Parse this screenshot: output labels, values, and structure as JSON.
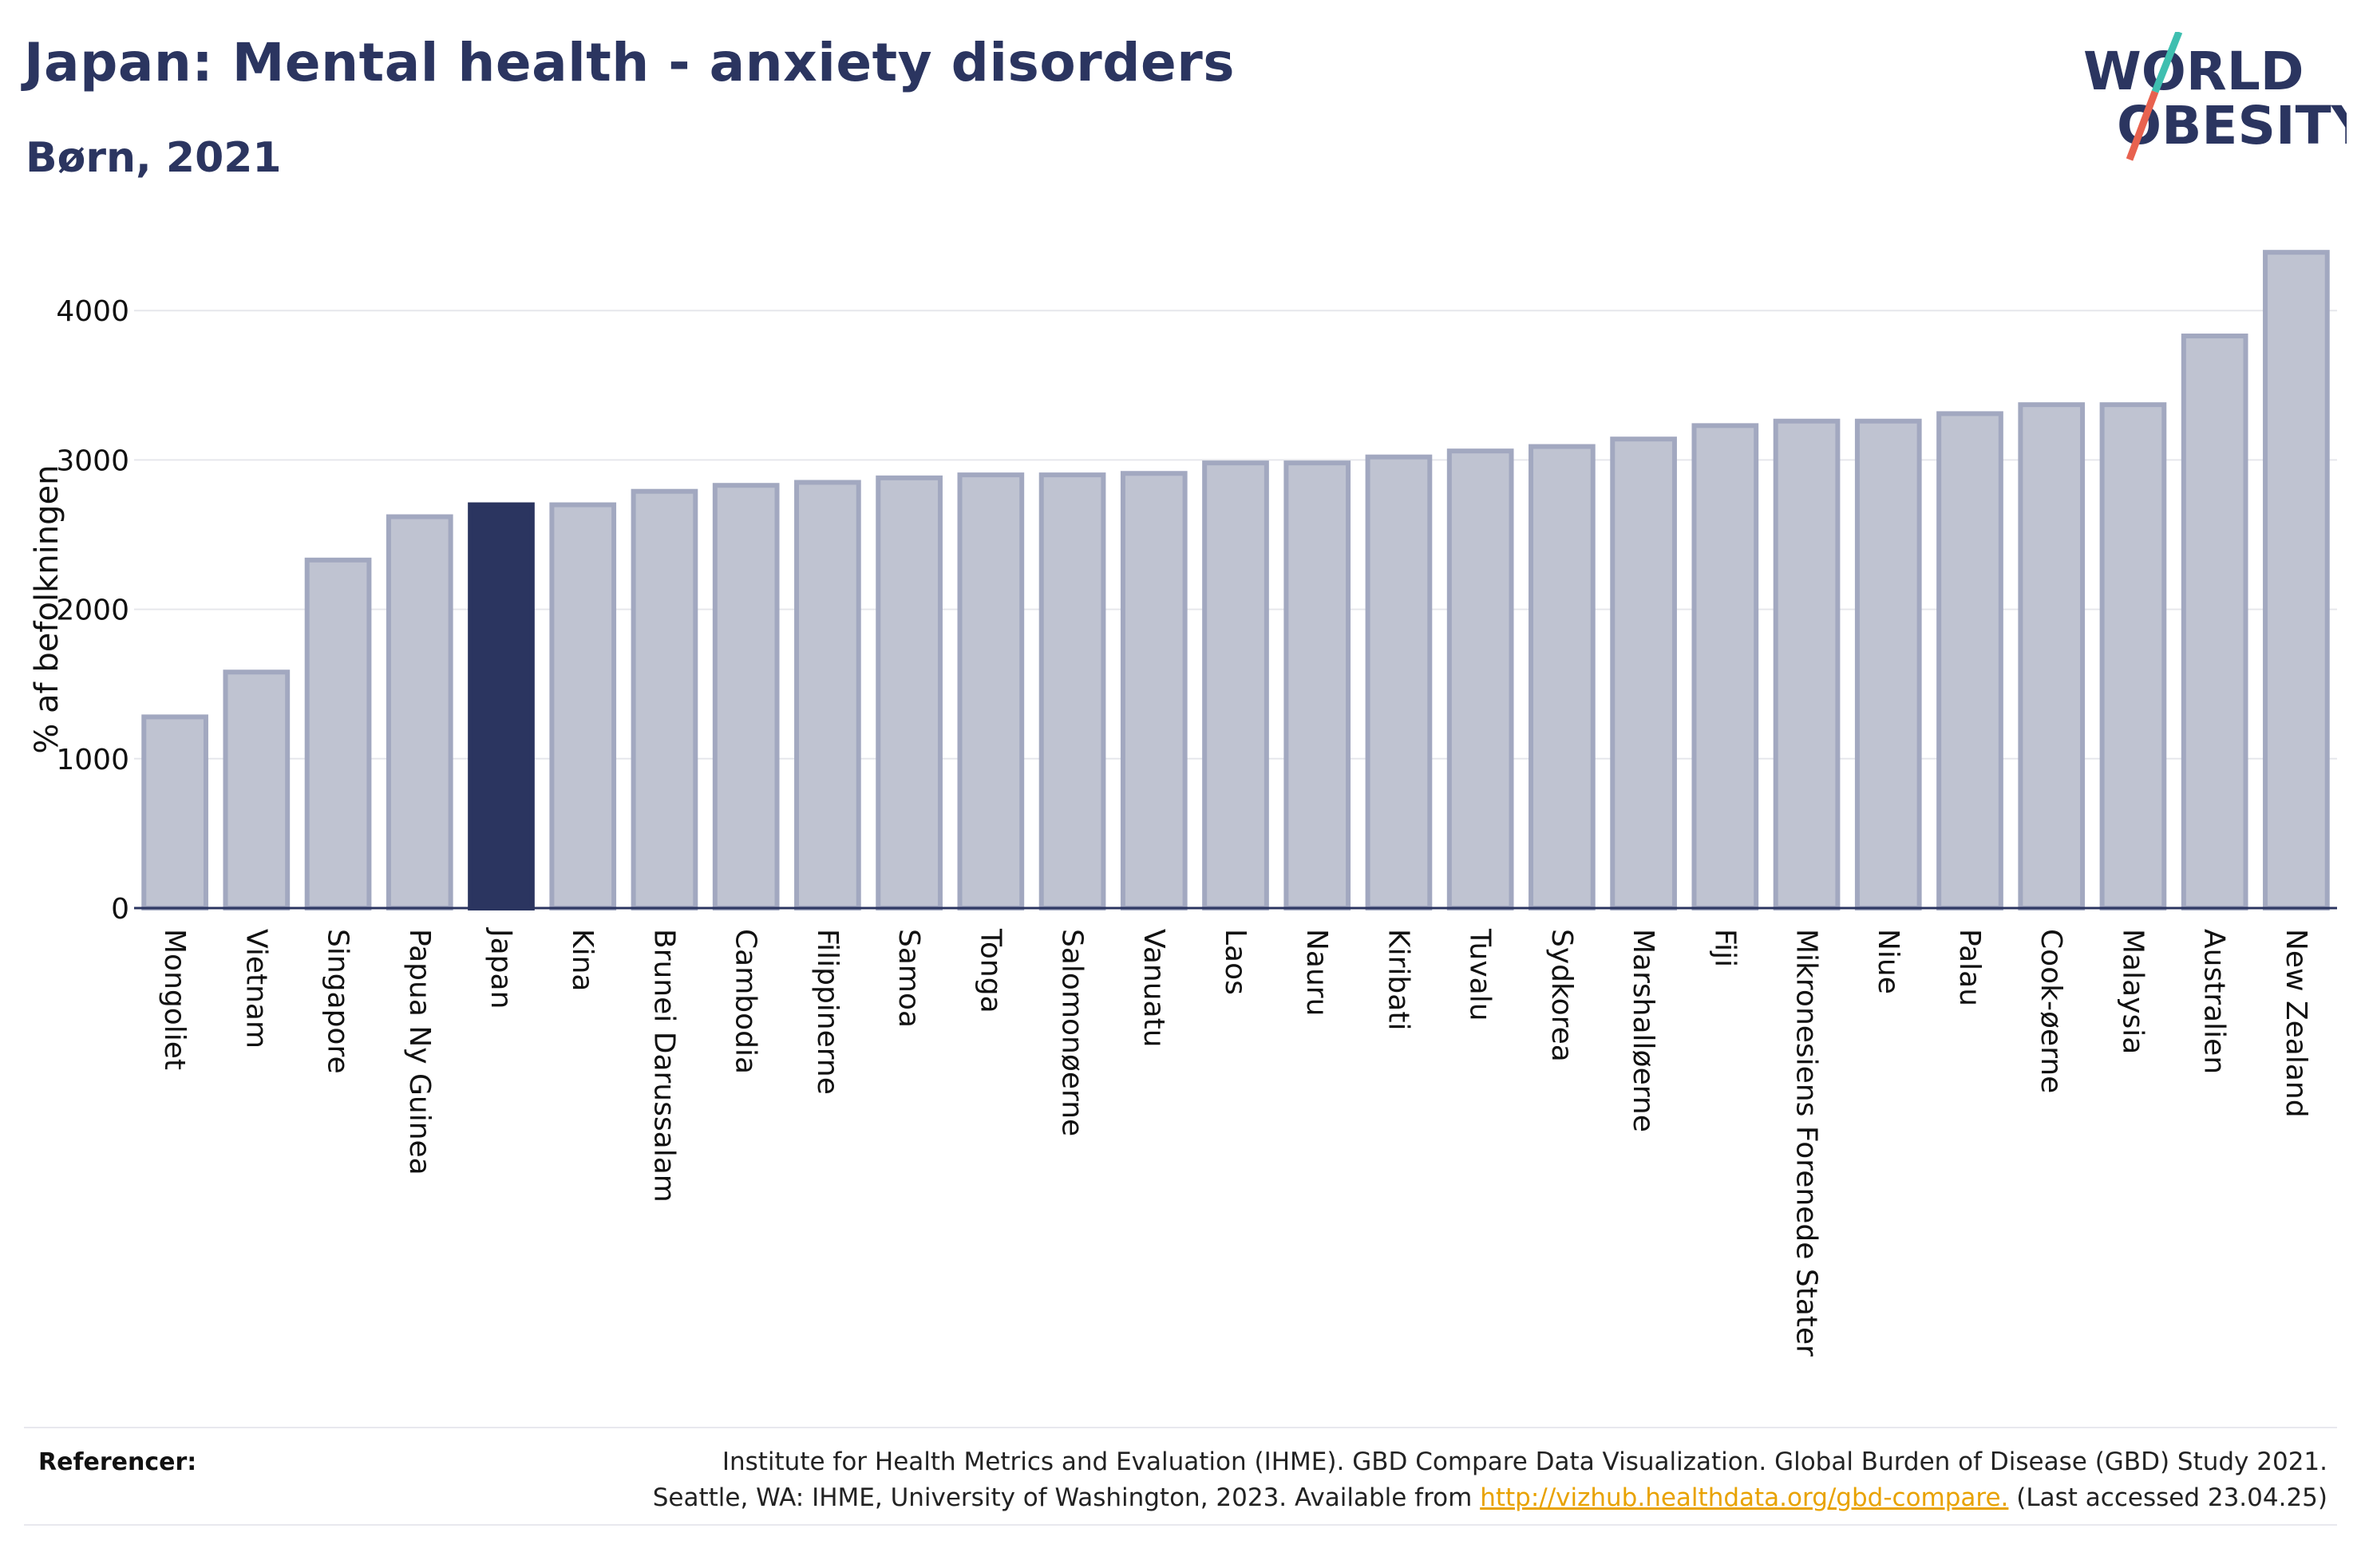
{
  "header": {
    "title": "Japan: Mental health - anxiety disorders",
    "subtitle": "Børn, 2021"
  },
  "logo": {
    "line1": "WORLD",
    "line2": "OBESITY",
    "text_color": "#2b3560",
    "slash_color_top": "#3fbfb0",
    "slash_color_bottom": "#e8624f"
  },
  "chart_data": {
    "type": "bar",
    "ylabel": "% af befolkningen",
    "ylim": [
      0,
      4500
    ],
    "yticks": [
      0,
      1000,
      2000,
      3000,
      4000
    ],
    "grid": true,
    "categories": [
      "Mongoliet",
      "Vietnam",
      "Singapore",
      "Papua Ny Guinea",
      "Japan",
      "Kina",
      "Brunei Darussalam",
      "Cambodia",
      "Filippinerne",
      "Samoa",
      "Tonga",
      "Salomonøerne",
      "Vanuatu",
      "Laos",
      "Nauru",
      "Kiribati",
      "Tuvalu",
      "Sydkorea",
      "Marshalløerne",
      "Fiji",
      "Mikronesiens Forenede Stater",
      "Niue",
      "Palau",
      "Cook-øerne",
      "Malaysia",
      "Australien",
      "New Zealand"
    ],
    "values": [
      1280,
      1580,
      2330,
      2620,
      2700,
      2700,
      2790,
      2830,
      2850,
      2880,
      2900,
      2900,
      2910,
      2980,
      2980,
      3020,
      3060,
      3090,
      3140,
      3230,
      3260,
      3260,
      3310,
      3370,
      3370,
      3830,
      4390
    ],
    "highlight": "Japan",
    "colors": {
      "bar": "#bfc3d1",
      "bar_border": "#a2a8c0",
      "highlight": "#2b3560",
      "grid": "#e6e7ec",
      "axis": "#2b3560"
    }
  },
  "footer": {
    "label": "Referencer:",
    "text_line1": "Institute for Health Metrics and Evaluation (IHME). GBD Compare Data Visualization. Global Burden of Disease (GBD) Study 2021.",
    "text_line2_pre": "Seattle, WA: IHME, University of Washington, 2023. Available from ",
    "link": "http://vizhub.healthdata.org/gbd-compare.",
    "text_line2_post": " (Last accessed 23.04.25)"
  }
}
